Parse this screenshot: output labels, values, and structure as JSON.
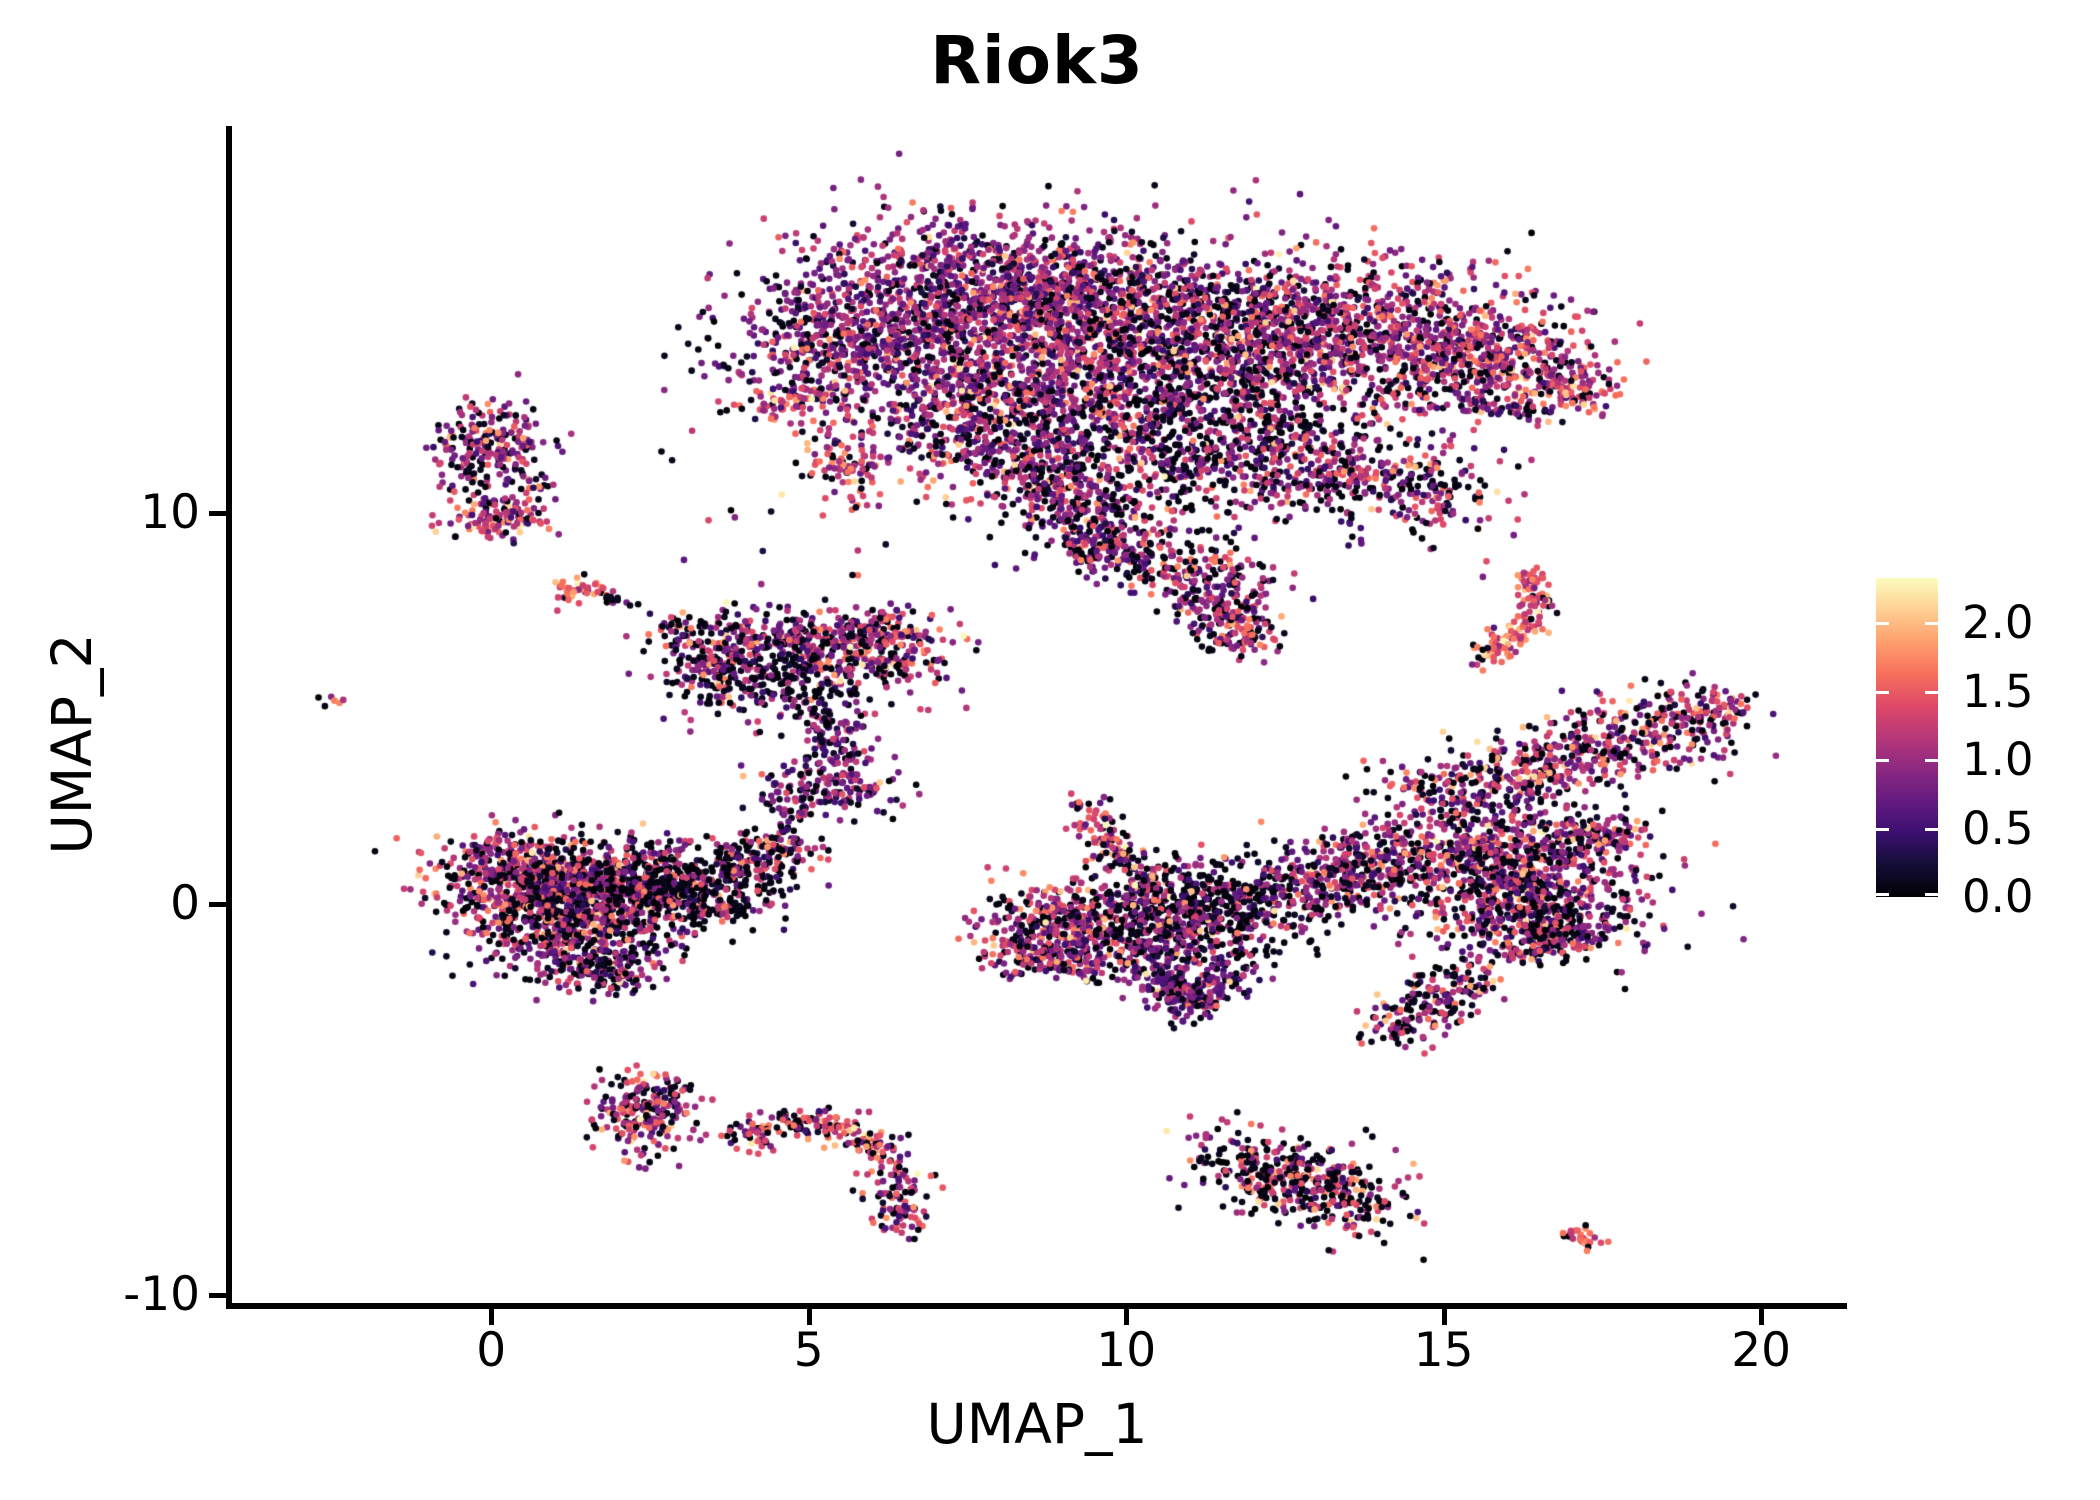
{
  "title": "Riok3",
  "axes": {
    "x_label": "UMAP_1",
    "y_label": "UMAP_2",
    "x_tick_labels": [
      "0",
      "5",
      "10",
      "15",
      "20"
    ],
    "x_tick_values": [
      0,
      5,
      10,
      15,
      20
    ],
    "y_tick_labels": [
      "10",
      "0",
      "-10"
    ],
    "y_tick_values": [
      10,
      0,
      -10
    ]
  },
  "colorbar": {
    "tick_labels": [
      "2.0",
      "1.5",
      "1.0",
      "0.5",
      "0.0"
    ],
    "tick_values": [
      2.0,
      1.5,
      1.0,
      0.5,
      0.0
    ],
    "vmin": 0.0,
    "vmax": 2.33,
    "colormap": "magma",
    "stops": [
      "#000004",
      "#140e36",
      "#3b0f70",
      "#641a80",
      "#8c2981",
      "#b73779",
      "#de4968",
      "#f7705c",
      "#fe9f6d",
      "#fecf92",
      "#fcfdbf"
    ]
  },
  "chart_data": {
    "type": "scatter",
    "title": "Riok3",
    "xlabel": "UMAP_1",
    "ylabel": "UMAP_2",
    "x_range": [
      -4.13,
      21.32
    ],
    "y_range": [
      -10.26,
      19.85
    ],
    "grid": false,
    "legend_position": "right-colorbar",
    "point_radius_px": 3.3,
    "value_range": [
      0.0,
      2.3
    ],
    "clusters": [
      {
        "name": "top-complex-left-lobe",
        "blobs": [
          {
            "type": "g",
            "x": 6.5,
            "y": 14.8,
            "sx": 1.05,
            "sy": 1.25,
            "n": 850,
            "z": 0.13,
            "m": 0.9,
            "s": 0.35
          },
          {
            "type": "g",
            "x": 8.6,
            "y": 15.7,
            "sx": 1.2,
            "sy": 0.95,
            "n": 800,
            "z": 0.15,
            "m": 0.95,
            "s": 0.4
          },
          {
            "type": "g",
            "x": 9.5,
            "y": 13.7,
            "sx": 1.15,
            "sy": 1.3,
            "n": 850,
            "z": 0.16,
            "m": 1.0,
            "s": 0.42
          },
          {
            "type": "g",
            "x": 7.6,
            "y": 12.3,
            "sx": 0.95,
            "sy": 0.85,
            "n": 420,
            "z": 0.2,
            "m": 1.0,
            "s": 0.45
          },
          {
            "type": "g",
            "x": 5.0,
            "y": 14.3,
            "sx": 0.8,
            "sy": 0.95,
            "n": 260,
            "z": 0.3,
            "m": 0.95,
            "s": 0.45
          },
          {
            "type": "s",
            "x1": 4.15,
            "y1": 12.65,
            "x2": 5.2,
            "y2": 12.95,
            "w": 0.22,
            "n": 55,
            "z": 0.1,
            "m": 1.3,
            "s": 0.35
          },
          {
            "type": "s",
            "x1": 5.35,
            "y1": 11.9,
            "x2": 5.85,
            "y2": 10.35,
            "w": 0.28,
            "n": 85,
            "z": 0.15,
            "m": 1.3,
            "s": 0.4
          },
          {
            "type": "s",
            "x1": 8.1,
            "y1": 11.5,
            "x2": 9.9,
            "y2": 9.4,
            "w": 0.5,
            "n": 300,
            "z": 0.3,
            "m": 1.0,
            "s": 0.45
          },
          {
            "type": "s",
            "x1": 9.2,
            "y1": 9.3,
            "x2": 10.3,
            "y2": 8.6,
            "w": 0.3,
            "n": 120,
            "z": 0.25,
            "m": 1.0,
            "s": 0.42
          },
          {
            "type": "g",
            "x": 4.6,
            "y": 9.6,
            "sx": 1.4,
            "sy": 1.2,
            "n": 18,
            "z": 0.4,
            "m": 0.9,
            "s": 0.5
          }
        ]
      },
      {
        "name": "top-complex-right-lobe",
        "blobs": [
          {
            "type": "g",
            "x": 11.2,
            "y": 15.2,
            "sx": 1.05,
            "sy": 0.85,
            "n": 420,
            "z": 0.33,
            "m": 0.9,
            "s": 0.45
          },
          {
            "type": "g",
            "x": 11.6,
            "y": 13.4,
            "sx": 1.0,
            "sy": 0.95,
            "n": 300,
            "z": 0.48,
            "m": 0.85,
            "s": 0.45
          },
          {
            "type": "g",
            "x": 13.5,
            "y": 14.6,
            "sx": 1.3,
            "sy": 1.0,
            "n": 900,
            "z": 0.2,
            "m": 1.05,
            "s": 0.42
          },
          {
            "type": "g",
            "x": 15.6,
            "y": 13.9,
            "sx": 0.9,
            "sy": 0.75,
            "n": 480,
            "z": 0.17,
            "m": 1.15,
            "s": 0.42
          },
          {
            "type": "s",
            "x1": 16.6,
            "y1": 13.5,
            "x2": 17.35,
            "y2": 13.0,
            "w": 0.28,
            "n": 90,
            "z": 0.12,
            "m": 1.3,
            "s": 0.4
          },
          {
            "type": "s",
            "x1": 15.3,
            "y1": 12.85,
            "x2": 16.7,
            "y2": 12.5,
            "w": 0.12,
            "n": 40,
            "z": 0.3,
            "m": 0.75,
            "s": 0.3
          },
          {
            "type": "g",
            "x": 10.7,
            "y": 11.4,
            "sx": 1.5,
            "sy": 1.1,
            "n": 560,
            "z": 0.42,
            "m": 0.85,
            "s": 0.45
          },
          {
            "type": "s",
            "x1": 11.9,
            "y1": 11.5,
            "x2": 15.3,
            "y2": 10.4,
            "w": 0.55,
            "n": 430,
            "z": 0.3,
            "m": 1.0,
            "s": 0.45
          },
          {
            "type": "s",
            "x1": 10.9,
            "y1": 8.9,
            "x2": 11.85,
            "y2": 7.0,
            "w": 0.42,
            "n": 260,
            "z": 0.28,
            "m": 1.05,
            "s": 0.45
          },
          {
            "type": "g",
            "x": 11.75,
            "y": 6.85,
            "sx": 0.3,
            "sy": 0.3,
            "n": 70,
            "z": 0.25,
            "m": 1.1,
            "s": 0.45
          }
        ]
      },
      {
        "name": "left-small-cluster",
        "blobs": [
          {
            "type": "g",
            "x": 0.0,
            "y": 11.6,
            "sx": 0.42,
            "sy": 0.6,
            "n": 230,
            "z": 0.2,
            "m": 1.0,
            "s": 0.42
          },
          {
            "type": "g",
            "x": 0.1,
            "y": 9.9,
            "sx": 0.42,
            "sy": 0.33,
            "n": 120,
            "z": 0.13,
            "m": 1.25,
            "s": 0.4
          },
          {
            "type": "s",
            "x1": 0.55,
            "y1": 10.9,
            "x2": 0.8,
            "y2": 10.6,
            "w": 0.15,
            "n": 14,
            "z": 0.2,
            "m": 1.2,
            "s": 0.4
          }
        ]
      },
      {
        "name": "tiny-hot-cluster",
        "blobs": [
          {
            "type": "g",
            "x": 1.45,
            "y": 8.0,
            "sx": 0.26,
            "sy": 0.2,
            "n": 40,
            "z": 0.1,
            "m": 1.45,
            "s": 0.35
          },
          {
            "type": "s",
            "x1": 1.75,
            "y1": 7.85,
            "x2": 2.15,
            "y2": 7.7,
            "w": 0.08,
            "n": 12,
            "z": 0.7,
            "m": 0.8,
            "s": 0.3
          }
        ]
      },
      {
        "name": "hat-cluster",
        "blobs": [
          {
            "type": "s",
            "x1": 3.6,
            "y1": 6.75,
            "x2": 6.3,
            "y2": 6.95,
            "w": 0.45,
            "n": 320,
            "z": 0.28,
            "m": 1.0,
            "s": 0.45
          },
          {
            "type": "g",
            "x": 3.1,
            "y": 6.8,
            "sx": 0.3,
            "sy": 0.35,
            "n": 60,
            "z": 0.3,
            "m": 1.0,
            "s": 0.45
          },
          {
            "type": "g",
            "x": 6.35,
            "y": 6.3,
            "sx": 0.5,
            "sy": 0.5,
            "n": 170,
            "z": 0.22,
            "m": 1.2,
            "s": 0.42
          },
          {
            "type": "g",
            "x": 3.6,
            "y": 5.75,
            "sx": 0.5,
            "sy": 0.5,
            "n": 150,
            "z": 0.45,
            "m": 0.9,
            "s": 0.45
          },
          {
            "type": "g",
            "x": 4.9,
            "y": 5.9,
            "sx": 0.65,
            "sy": 0.4,
            "n": 150,
            "z": 0.5,
            "m": 0.9,
            "s": 0.45
          },
          {
            "type": "s",
            "x1": 4.95,
            "y1": 5.2,
            "x2": 5.6,
            "y2": 3.9,
            "w": 0.33,
            "n": 110,
            "z": 0.28,
            "m": 0.8,
            "s": 0.4
          },
          {
            "type": "g",
            "x": 5.35,
            "y": 3.1,
            "sx": 0.55,
            "sy": 0.45,
            "n": 170,
            "z": 0.22,
            "m": 0.8,
            "s": 0.38
          },
          {
            "type": "s",
            "x1": 4.4,
            "y1": 2.6,
            "x2": 4.9,
            "y2": 2.1,
            "w": 0.2,
            "n": 18,
            "z": 0.3,
            "m": 0.8,
            "s": 0.4
          }
        ]
      },
      {
        "name": "tiny-dot-pair",
        "blobs": [
          {
            "type": "p",
            "pts": [
              [
                -2.72,
                5.28,
                0.0
              ],
              [
                -2.62,
                5.06,
                0.05
              ],
              [
                -2.52,
                5.3,
                0.9
              ],
              [
                -2.47,
                5.2,
                1.7
              ],
              [
                -2.39,
                5.14,
                1.75
              ],
              [
                -2.33,
                5.22,
                1.1
              ]
            ]
          }
        ]
      },
      {
        "name": "left-large-cluster",
        "blobs": [
          {
            "type": "g",
            "x": 0.6,
            "y": 0.45,
            "sx": 0.75,
            "sy": 0.62,
            "n": 600,
            "z": 0.3,
            "m": 1.1,
            "s": 0.42
          },
          {
            "type": "g",
            "x": 1.9,
            "y": 0.3,
            "sx": 0.8,
            "sy": 0.58,
            "n": 520,
            "z": 0.38,
            "m": 1.0,
            "s": 0.45
          },
          {
            "type": "g",
            "x": 3.1,
            "y": 0.4,
            "sx": 0.75,
            "sy": 0.5,
            "n": 380,
            "z": 0.5,
            "m": 0.95,
            "s": 0.45
          },
          {
            "type": "s",
            "x1": 3.8,
            "y1": 0.9,
            "x2": 4.7,
            "y2": 1.5,
            "w": 0.35,
            "n": 150,
            "z": 0.45,
            "m": 1.05,
            "s": 0.45
          },
          {
            "type": "g",
            "x": 1.3,
            "y": -0.95,
            "sx": 0.8,
            "sy": 0.5,
            "n": 300,
            "z": 0.45,
            "m": 1.0,
            "s": 0.45
          },
          {
            "type": "g",
            "x": 1.75,
            "y": -1.7,
            "sx": 0.5,
            "sy": 0.35,
            "n": 140,
            "z": 0.4,
            "m": 0.95,
            "s": 0.45
          },
          {
            "type": "s",
            "x1": 0.0,
            "y1": 1.6,
            "x2": 3.0,
            "y2": 1.3,
            "w": 0.3,
            "n": 60,
            "z": 0.45,
            "m": 0.95,
            "s": 0.45
          }
        ]
      },
      {
        "name": "middle-complex",
        "blobs": [
          {
            "type": "g",
            "x": 8.9,
            "y": -0.6,
            "sx": 0.55,
            "sy": 0.55,
            "n": 330,
            "z": 0.28,
            "m": 1.15,
            "s": 0.42
          },
          {
            "type": "s",
            "x1": 8.1,
            "y1": -1.35,
            "x2": 9.6,
            "y2": -1.55,
            "w": 0.25,
            "n": 120,
            "z": 0.35,
            "m": 0.9,
            "s": 0.45
          },
          {
            "type": "g",
            "x": 10.6,
            "y": -0.4,
            "sx": 0.75,
            "sy": 0.7,
            "n": 500,
            "z": 0.4,
            "m": 0.95,
            "s": 0.45
          },
          {
            "type": "s",
            "x1": 10.4,
            "y1": -1.5,
            "x2": 11.0,
            "y2": -2.62,
            "w": 0.3,
            "n": 150,
            "z": 0.22,
            "m": 0.75,
            "s": 0.35
          },
          {
            "type": "s",
            "x1": 11.0,
            "y1": -2.62,
            "x2": 11.75,
            "y2": -1.7,
            "w": 0.25,
            "n": 110,
            "z": 0.25,
            "m": 0.8,
            "s": 0.38
          },
          {
            "type": "s",
            "x1": 9.35,
            "y1": 2.5,
            "x2": 10.25,
            "y2": 0.5,
            "w": 0.22,
            "n": 130,
            "z": 0.22,
            "m": 1.15,
            "s": 0.45
          },
          {
            "type": "g",
            "x": 11.7,
            "y": -0.1,
            "sx": 0.75,
            "sy": 0.55,
            "n": 260,
            "z": 0.55,
            "m": 0.85,
            "s": 0.45
          },
          {
            "type": "s",
            "x1": 12.5,
            "y1": 0.3,
            "x2": 14.3,
            "y2": 1.3,
            "w": 0.5,
            "n": 380,
            "z": 0.3,
            "m": 1.0,
            "s": 0.45
          },
          {
            "type": "g",
            "x": 15.9,
            "y": 1.0,
            "sx": 1.0,
            "sy": 0.8,
            "n": 800,
            "z": 0.3,
            "m": 1.0,
            "s": 0.45
          },
          {
            "type": "s",
            "x1": 16.9,
            "y1": 1.85,
            "x2": 18.0,
            "y2": 1.65,
            "w": 0.2,
            "n": 90,
            "z": 0.25,
            "m": 1.1,
            "s": 0.45
          },
          {
            "type": "s",
            "x1": 14.6,
            "y1": 2.6,
            "x2": 19.15,
            "y2": 4.85,
            "w": 0.5,
            "n": 640,
            "z": 0.28,
            "m": 1.05,
            "s": 0.45
          },
          {
            "type": "g",
            "x": 19.25,
            "y": 5.0,
            "sx": 0.28,
            "sy": 0.28,
            "n": 50,
            "z": 0.25,
            "m": 1.0,
            "s": 0.45
          },
          {
            "type": "g",
            "x": 16.4,
            "y": -0.45,
            "sx": 0.85,
            "sy": 0.5,
            "n": 320,
            "z": 0.33,
            "m": 1.0,
            "s": 0.45
          },
          {
            "type": "s",
            "x1": 16.2,
            "y1": -1.3,
            "x2": 17.3,
            "y2": -0.7,
            "w": 0.25,
            "n": 100,
            "z": 0.3,
            "m": 1.0,
            "s": 0.45
          }
        ]
      },
      {
        "name": "small-below-right",
        "blobs": [
          {
            "type": "s",
            "x1": 14.15,
            "y1": -3.3,
            "x2": 15.55,
            "y2": -1.8,
            "w": 0.3,
            "n": 200,
            "z": 0.33,
            "m": 1.0,
            "s": 0.45
          }
        ]
      },
      {
        "name": "snake-cluster",
        "blobs": [
          {
            "type": "s",
            "x1": 16.35,
            "y1": 8.45,
            "x2": 16.5,
            "y2": 7.6,
            "w": 0.16,
            "n": 50,
            "z": 0.08,
            "m": 1.4,
            "s": 0.35
          },
          {
            "type": "s",
            "x1": 16.5,
            "y1": 7.6,
            "x2": 15.95,
            "y2": 6.65,
            "w": 0.16,
            "n": 50,
            "z": 0.08,
            "m": 1.45,
            "s": 0.35
          },
          {
            "type": "s",
            "x1": 15.95,
            "y1": 6.65,
            "x2": 15.7,
            "y2": 6.2,
            "w": 0.16,
            "n": 40,
            "z": 0.1,
            "m": 1.5,
            "s": 0.35
          }
        ]
      },
      {
        "name": "bottom-left-blob",
        "blobs": [
          {
            "type": "g",
            "x": 2.4,
            "y": -5.4,
            "sx": 0.42,
            "sy": 0.5,
            "n": 230,
            "z": 0.22,
            "m": 1.1,
            "s": 0.42
          },
          {
            "type": "p",
            "pts": [
              [
                2.3,
                -4.5,
                1.6
              ],
              [
                2.35,
                -4.35,
                1.55
              ]
            ]
          }
        ]
      },
      {
        "name": "bottom-arc",
        "blobs": [
          {
            "type": "s",
            "x1": 3.85,
            "y1": -5.95,
            "x2": 5.1,
            "y2": -5.45,
            "w": 0.22,
            "n": 85,
            "z": 0.35,
            "m": 1.25,
            "s": 0.45
          },
          {
            "type": "s",
            "x1": 5.1,
            "y1": -5.5,
            "x2": 6.05,
            "y2": -6.1,
            "w": 0.22,
            "n": 80,
            "z": 0.15,
            "m": 1.45,
            "s": 0.4
          },
          {
            "type": "s",
            "x1": 6.1,
            "y1": -6.2,
            "x2": 6.5,
            "y2": -7.3,
            "w": 0.22,
            "n": 60,
            "z": 0.3,
            "m": 1.1,
            "s": 0.45
          },
          {
            "type": "g",
            "x": 6.45,
            "y": -7.85,
            "sx": 0.25,
            "sy": 0.35,
            "n": 60,
            "z": 0.18,
            "m": 1.0,
            "s": 0.4
          }
        ]
      },
      {
        "name": "bottom-middle-cluster",
        "blobs": [
          {
            "type": "g",
            "x": 12.75,
            "y": -7.1,
            "sx": 0.85,
            "sy": 0.5,
            "rot": -32,
            "n": 430,
            "z": 0.45,
            "m": 1.15,
            "s": 0.45
          }
        ]
      },
      {
        "name": "bottom-right-tiny",
        "blobs": [
          {
            "type": "s",
            "x1": 16.95,
            "y1": -8.35,
            "x2": 17.5,
            "y2": -8.75,
            "w": 0.12,
            "n": 30,
            "z": 0.1,
            "m": 1.55,
            "s": 0.35
          },
          {
            "type": "p",
            "pts": [
              [
                16.88,
                -8.42,
                1.65
              ]
            ]
          }
        ]
      }
    ]
  }
}
